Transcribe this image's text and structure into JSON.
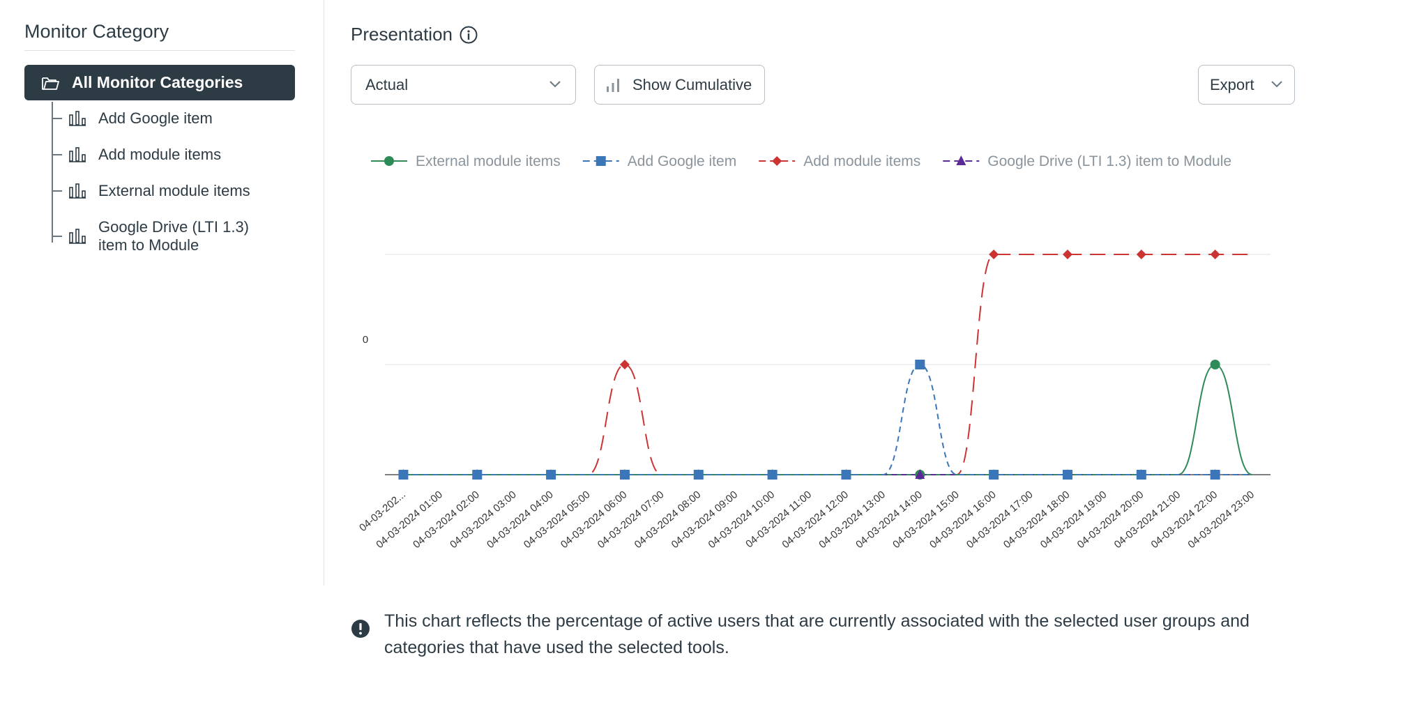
{
  "sidebar": {
    "title": "Monitor Category",
    "all_label": "All Monitor Categories",
    "items": [
      {
        "label": "Add Google item"
      },
      {
        "label": "Add module items"
      },
      {
        "label": "External module items"
      },
      {
        "label": "Google Drive (LTI 1.3)\nitem to Module"
      }
    ]
  },
  "header": {
    "title": "Presentation",
    "select_value": "Actual",
    "cumulative_label": "Show Cumulative",
    "export_label": "Export"
  },
  "note": "This chart reflects the percentage of active users that are currently associated with the selected user groups and categories that have used the selected tools.",
  "icons": [
    "folder-icon",
    "bar-chart-icon",
    "info-icon",
    "chevron-down-icon",
    "alert-icon"
  ],
  "chart_data": {
    "type": "line",
    "y_tick_labels": [
      "0"
    ],
    "categories": [
      "04-03-202...",
      "04-03-2024 01:00",
      "04-03-2024 02:00",
      "04-03-2024 03:00",
      "04-03-2024 04:00",
      "04-03-2024 05:00",
      "04-03-2024 06:00",
      "04-03-2024 07:00",
      "04-03-2024 08:00",
      "04-03-2024 09:00",
      "04-03-2024 10:00",
      "04-03-2024 11:00",
      "04-03-2024 12:00",
      "04-03-2024 13:00",
      "04-03-2024 14:00",
      "04-03-2024 15:00",
      "04-03-2024 16:00",
      "04-03-2024 17:00",
      "04-03-2024 18:00",
      "04-03-2024 19:00",
      "04-03-2024 20:00",
      "04-03-2024 21:00",
      "04-03-2024 22:00",
      "04-03-2024 23:00"
    ],
    "marker_every": 2,
    "ylim": [
      0,
      2.2
    ],
    "grid_levels": [
      1,
      2
    ],
    "legend_position": "top",
    "series": [
      {
        "name": "External module items",
        "color": "#2e8b57",
        "marker": "circle",
        "dash": "solid",
        "values": [
          0,
          0,
          0,
          0,
          0,
          0,
          0,
          0,
          0,
          0,
          0,
          0,
          0,
          0,
          0,
          0,
          0,
          0,
          0,
          0,
          0,
          0,
          1,
          0
        ]
      },
      {
        "name": "Add Google item",
        "color": "#3a76b8",
        "marker": "square",
        "dash": "dashed",
        "values": [
          0,
          0,
          0,
          0,
          0,
          0,
          0,
          0,
          0,
          0,
          0,
          0,
          0,
          0,
          1,
          0,
          0,
          0,
          0,
          0,
          0,
          0,
          0,
          0
        ]
      },
      {
        "name": "Add module items",
        "color": "#cc3333",
        "marker": "diamond",
        "dash": "longdash",
        "values": [
          0,
          0,
          0,
          0,
          0,
          0,
          1,
          0,
          0,
          0,
          0,
          0,
          0,
          0,
          0,
          0,
          2,
          2,
          2,
          2,
          2,
          2,
          2,
          2
        ]
      },
      {
        "name": "Google Drive (LTI 1.3) item to Module",
        "color": "#5b2a96",
        "marker": "triangle",
        "dash": "dashed",
        "values": [
          0,
          0,
          0,
          0,
          0,
          0,
          0,
          0,
          0,
          0,
          0,
          0,
          0,
          0,
          0,
          0,
          0,
          0,
          0,
          0,
          0,
          0,
          0,
          0
        ]
      }
    ]
  }
}
